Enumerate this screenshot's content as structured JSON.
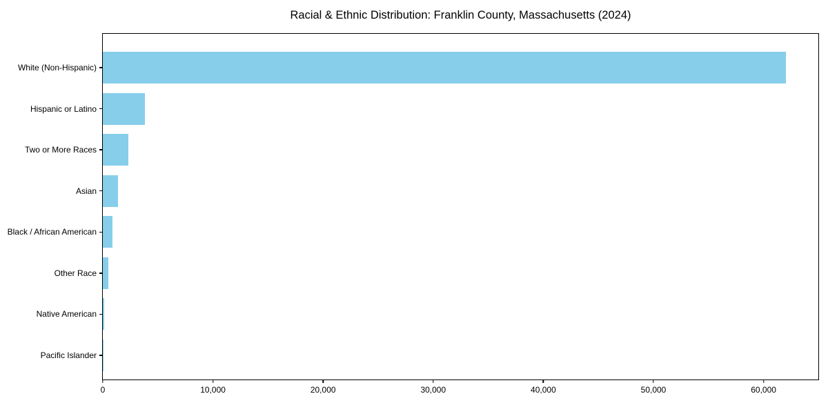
{
  "chart_data": {
    "type": "bar",
    "orientation": "horizontal",
    "title": "Racial & Ethnic Distribution: Franklin County, Massachusetts (2024)",
    "categories": [
      "White (Non-Hispanic)",
      "Hispanic or Latino",
      "Two or More Races",
      "Asian",
      "Black / African American",
      "Other Race",
      "Native American",
      "Pacific Islander"
    ],
    "values": [
      62000,
      3800,
      2300,
      1400,
      900,
      500,
      100,
      30
    ],
    "xlabel": "",
    "ylabel": "",
    "xlim": [
      0,
      65100
    ],
    "x_ticks": [
      0,
      10000,
      20000,
      30000,
      40000,
      50000,
      60000
    ],
    "x_tick_labels": [
      "0",
      "10,000",
      "20,000",
      "30,000",
      "40,000",
      "50,000",
      "60,000"
    ],
    "bar_color": "#87CEEB",
    "axis_color": "#000000",
    "background_color": "#ffffff",
    "grid": false,
    "legend": null
  }
}
